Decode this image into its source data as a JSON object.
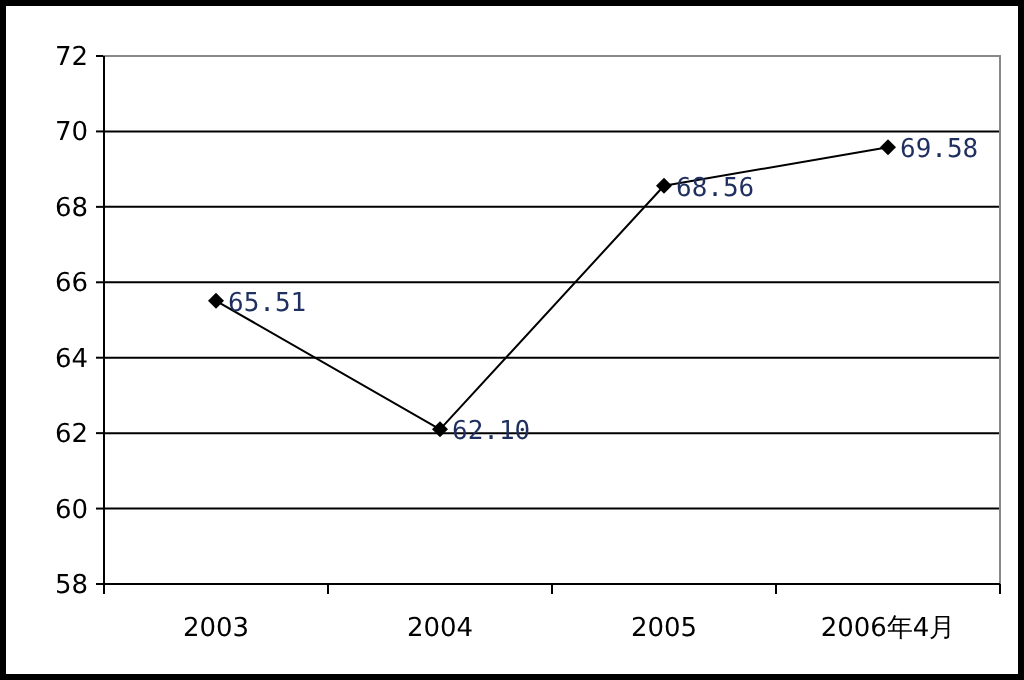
{
  "chart_data": {
    "type": "line",
    "categories": [
      "2003",
      "2004",
      "2005",
      "2006年4月"
    ],
    "series": [
      {
        "color": "#000000",
        "values": [
          65.51,
          62.1,
          68.56,
          69.58
        ],
        "value_labels": [
          "65.51",
          "62.10",
          "68.56",
          "69.58"
        ]
      }
    ],
    "ylim": [
      58,
      72
    ],
    "yticks": [
      58,
      60,
      62,
      64,
      66,
      68,
      70,
      72
    ],
    "grid": "y",
    "marker": "diamond",
    "line_style": "solid"
  }
}
